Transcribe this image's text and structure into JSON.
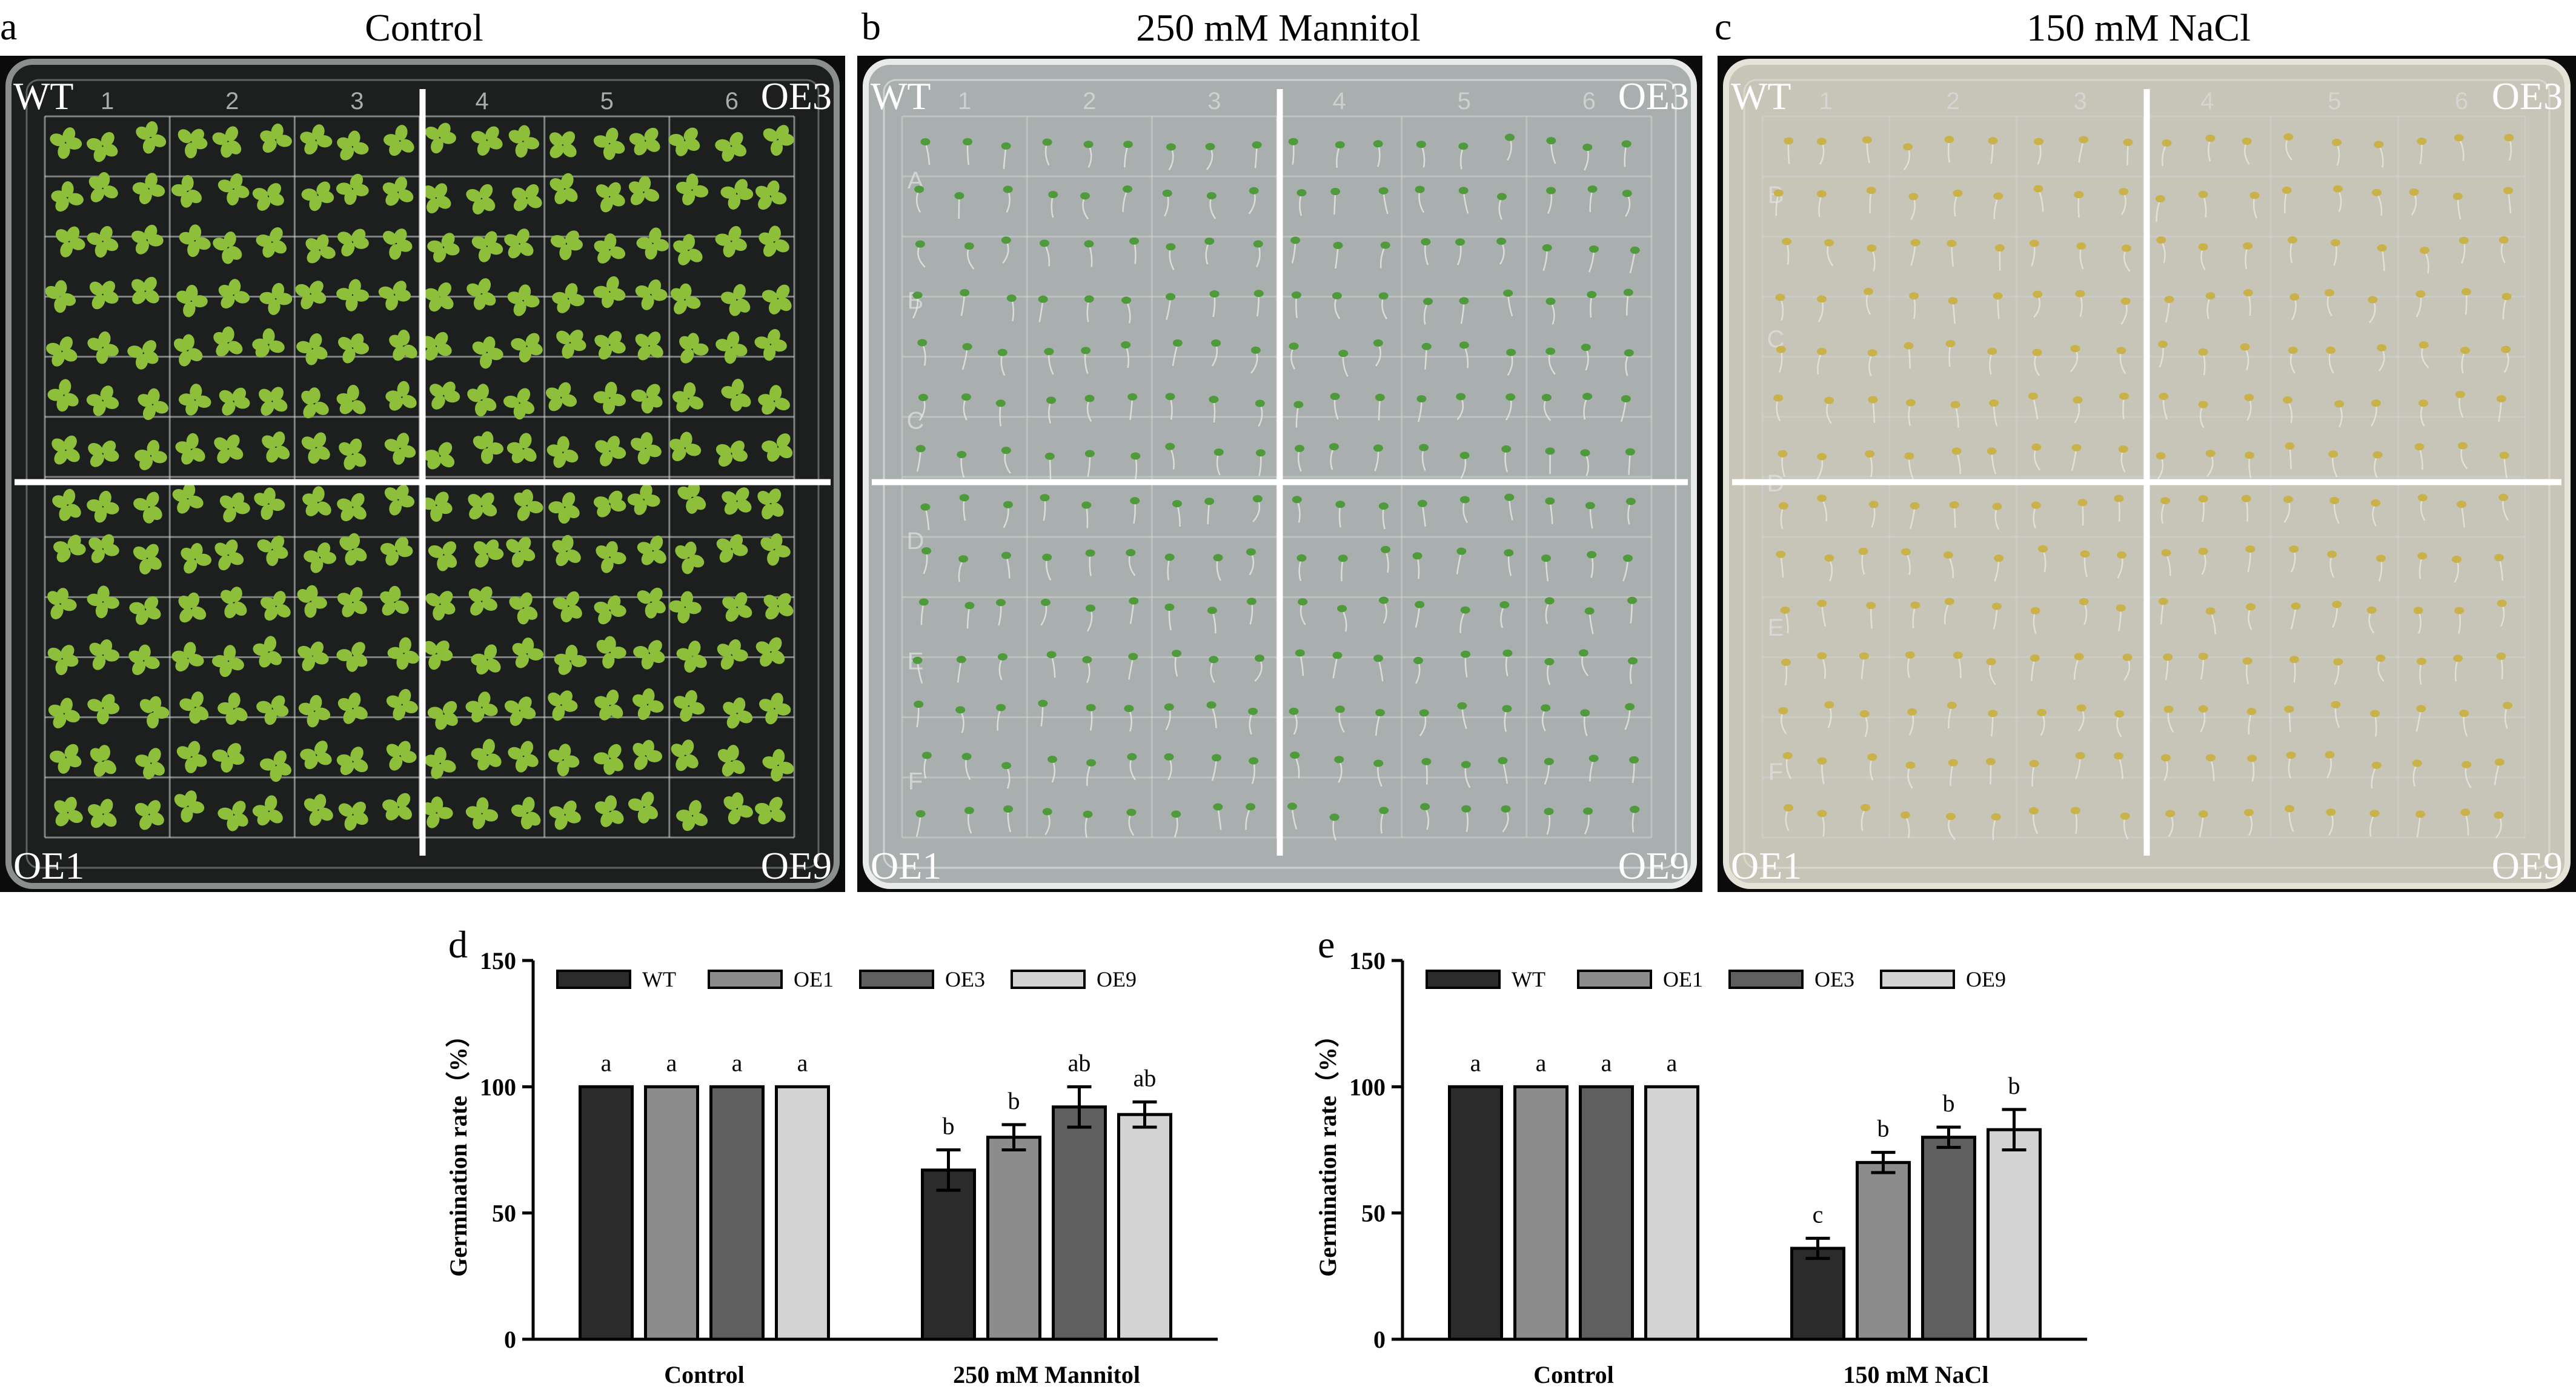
{
  "panels": [
    {
      "letter": "a",
      "title": "Control",
      "labels": {
        "tl": "WT",
        "tr": "OE3",
        "bl": "OE1",
        "br": "OE9"
      },
      "grid_cols": [
        "1",
        "2",
        "3",
        "4",
        "5",
        "6"
      ],
      "grid_rows": [],
      "colors": {
        "bg": "#0b0b0b",
        "plate": "#1c1f1e",
        "rim": "#8a8f8c",
        "seedling": "#8dbf3a"
      }
    },
    {
      "letter": "b",
      "title": "250 mM Mannitol",
      "labels": {
        "tl": "WT",
        "tr": "OE3",
        "bl": "OE1",
        "br": "OE9"
      },
      "grid_cols": [
        "1",
        "2",
        "3",
        "4",
        "5",
        "6"
      ],
      "grid_rows": [
        "A",
        "B",
        "C",
        "D",
        "E",
        "F"
      ],
      "colors": {
        "bg": "#0b0b0b",
        "plate": "#a9aeae",
        "rim": "#e8ebea",
        "seedling": "#4f9a3a"
      }
    },
    {
      "letter": "c",
      "title": "150 mM NaCl",
      "labels": {
        "tl": "WT",
        "tr": "OE3",
        "bl": "OE1",
        "br": "OE9"
      },
      "grid_cols": [
        "1",
        "2",
        "3",
        "4",
        "5",
        "6"
      ],
      "grid_rows": [
        "B",
        "C",
        "D",
        "E",
        "F"
      ],
      "colors": {
        "bg": "#0b0b0b",
        "plate": "#c7c4b8",
        "rim": "#e5e2d8",
        "seedling": "#c9b24a"
      }
    }
  ],
  "chart_data": [
    {
      "type": "bar",
      "letter": "d",
      "categories": [
        "Control",
        "250 mM Mannitol"
      ],
      "series": [
        {
          "name": "WT",
          "values": [
            100,
            67
          ],
          "errors": [
            0,
            8
          ],
          "letters": [
            "a",
            "b"
          ]
        },
        {
          "name": "OE1",
          "values": [
            100,
            80
          ],
          "errors": [
            0,
            5
          ],
          "letters": [
            "a",
            "b"
          ]
        },
        {
          "name": "OE3",
          "values": [
            100,
            92
          ],
          "errors": [
            0,
            8
          ],
          "letters": [
            "a",
            "ab"
          ]
        },
        {
          "name": "OE9",
          "values": [
            100,
            89
          ],
          "errors": [
            0,
            5
          ],
          "letters": [
            "a",
            "ab"
          ]
        }
      ],
      "ylabel": "Germination rate（%）",
      "ylim": [
        0,
        150
      ],
      "yticks": [
        "0",
        "50",
        "100",
        "150"
      ],
      "legend": "top",
      "colors": [
        "#2b2b2b",
        "#8c8c8c",
        "#5f5f5f",
        "#d3d3d3"
      ]
    },
    {
      "type": "bar",
      "letter": "e",
      "categories": [
        "Control",
        "150 mM NaCl"
      ],
      "series": [
        {
          "name": "WT",
          "values": [
            100,
            36
          ],
          "errors": [
            0,
            4
          ],
          "letters": [
            "a",
            "c"
          ]
        },
        {
          "name": "OE1",
          "values": [
            100,
            70
          ],
          "errors": [
            0,
            4
          ],
          "letters": [
            "a",
            "b"
          ]
        },
        {
          "name": "OE3",
          "values": [
            100,
            80
          ],
          "errors": [
            0,
            4
          ],
          "letters": [
            "a",
            "b"
          ]
        },
        {
          "name": "OE9",
          "values": [
            100,
            83
          ],
          "errors": [
            0,
            8
          ],
          "letters": [
            "a",
            "b"
          ]
        }
      ],
      "ylabel": "Germination rate（%）",
      "ylim": [
        0,
        150
      ],
      "yticks": [
        "0",
        "50",
        "100",
        "150"
      ],
      "legend": "top",
      "colors": [
        "#2b2b2b",
        "#8c8c8c",
        "#5f5f5f",
        "#d3d3d3"
      ]
    }
  ]
}
